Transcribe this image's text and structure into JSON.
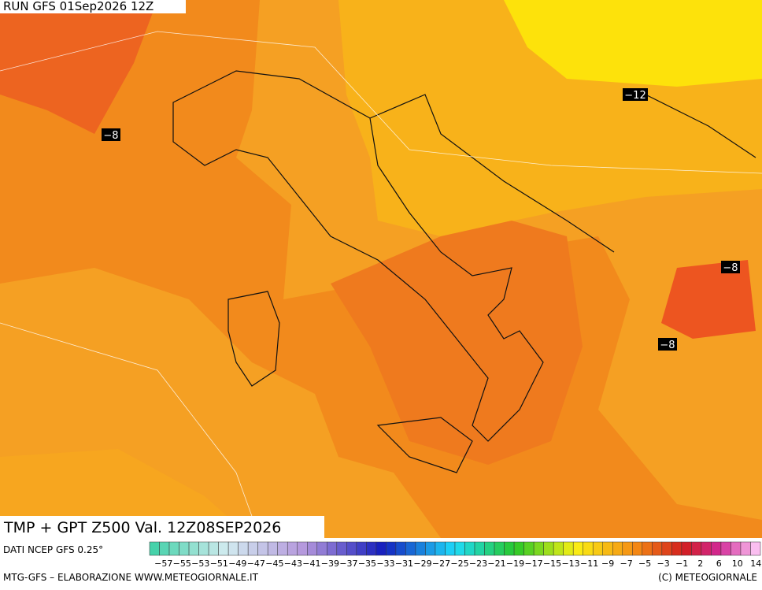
{
  "header": {
    "run": "RUN GFS 01Sep2026 12Z"
  },
  "map": {
    "title": "TMP + GPT Z500 Val. 12Z08SEP2026",
    "contour_labels": [
      {
        "label": "−8"
      },
      {
        "label": "−12"
      },
      {
        "label": "−8"
      },
      {
        "label": "−8"
      }
    ]
  },
  "colorbar": {
    "source": "DATI NCEP GFS 0.25°",
    "labels": [
      "−57",
      "−55",
      "−53",
      "−51",
      "−49",
      "−47",
      "−45",
      "−43",
      "−41",
      "−39",
      "−37",
      "−35",
      "−33",
      "−31",
      "−29",
      "−27",
      "−25",
      "−23",
      "−21",
      "−19",
      "−17",
      "−15",
      "−13",
      "−11",
      "−9",
      "−7",
      "−5",
      "−3",
      "−1",
      "2",
      "6",
      "10",
      "14"
    ]
  },
  "footer": {
    "left": "MTG-GFS – ELABORAZIONE WWW.METEOGIORNALE.IT",
    "right": "(C) METEOGIORNALE"
  }
}
